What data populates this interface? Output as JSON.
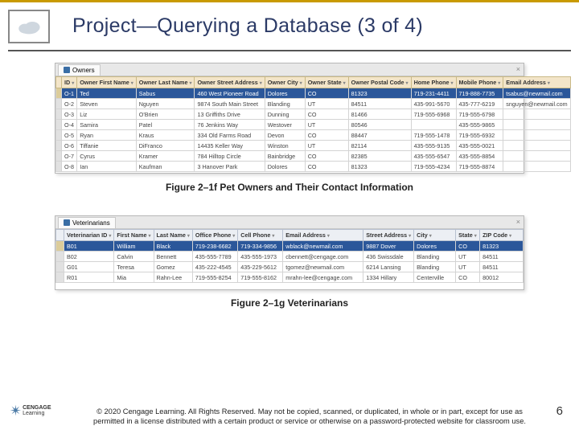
{
  "title": "Project—Querying a Database (3 of 4)",
  "pageNum": "6",
  "caption1": "Figure 2–1f Pet Owners and Their Contact Information",
  "caption2": "Figure 2–1g Veterinarians",
  "copyright": "© 2020 Cengage Learning. All Rights Reserved. May not be copied, scanned, or duplicated, in whole or in part, except for use as permitted in a license distributed with a certain product or service or otherwise on a password-protected website for classroom use.",
  "footerBrand": "CENGAGE",
  "footerSub": "Learning",
  "tab1": "Owners",
  "tab2": "Veterinarians",
  "owners": {
    "headers": [
      "",
      "ID",
      "Owner First Name",
      "Owner Last Name",
      "Owner Street Address",
      "Owner City",
      "Owner State",
      "Owner Postal Code",
      "Home Phone",
      "Mobile Phone",
      "Email Address"
    ],
    "rows": [
      [
        "",
        "O-1",
        "Ted",
        "Sabus",
        "460 West Pioneer Road",
        "Dolores",
        "CO",
        "81323",
        "719-231-4411",
        "719-888-7735",
        "tsabus@newmail.com"
      ],
      [
        "",
        "O-2",
        "Steven",
        "Nguyen",
        "9874 South Main Street",
        "Blanding",
        "UT",
        "84511",
        "435-991-5670",
        "435-777-6219",
        "snguyen@newmail.com"
      ],
      [
        "",
        "O-3",
        "Liz",
        "O'Brien",
        "13 Griffiths Drive",
        "Dunning",
        "CO",
        "81466",
        "719-555-6968",
        "719-555-6798",
        ""
      ],
      [
        "",
        "O-4",
        "Samira",
        "Patel",
        "76 Jenkins Way",
        "Westover",
        "UT",
        "80546",
        "",
        "435-555-9865",
        ""
      ],
      [
        "",
        "O-5",
        "Ryan",
        "Kraus",
        "334 Old Farms Road",
        "Devon",
        "CO",
        "88447",
        "719-555-1478",
        "719-555-6932",
        ""
      ],
      [
        "",
        "O-6",
        "Tiffanie",
        "DiFranco",
        "14435 Keller Way",
        "Winston",
        "UT",
        "82114",
        "435-555-9135",
        "435-555-0021",
        ""
      ],
      [
        "",
        "O-7",
        "Cyrus",
        "Kramer",
        "784 Hilltop Circle",
        "Bainbridge",
        "CO",
        "82385",
        "435-555-6547",
        "435-555-8854",
        ""
      ],
      [
        "",
        "O-8",
        "Ian",
        "Kaufman",
        "3 Hanover Park",
        "Dolores",
        "CO",
        "81323",
        "719-555-4234",
        "719-555-8874",
        ""
      ]
    ],
    "hlRow": 0,
    "colWidths": [
      "10px",
      "22px",
      "60px",
      "60px",
      "94px",
      "46px",
      "48px",
      "60px",
      "50px",
      "50px",
      "auto"
    ],
    "headerBg": "#f3e5c9",
    "hlBg": "#2b579a"
  },
  "vets": {
    "headers": [
      "",
      "Veterinarian ID",
      "First Name",
      "Last Name",
      "Office Phone",
      "Cell Phone",
      "Email Address",
      "Street Address",
      "City",
      "State",
      "ZIP Code"
    ],
    "rows": [
      [
        "",
        "B01",
        "William",
        "Black",
        "719-238-6682",
        "719-334-9856",
        "wblack@newmail.com",
        "9887 Dover",
        "Dolores",
        "CO",
        "81323"
      ],
      [
        "",
        "B02",
        "Calvin",
        "Bennett",
        "435-555-7789",
        "435-555-1973",
        "cbennett@cengage.com",
        "436 Swissdale",
        "Blanding",
        "UT",
        "84511"
      ],
      [
        "",
        "G01",
        "Teresa",
        "Gomez",
        "435-222-4545",
        "435-229-5612",
        "tgomez@newmail.com",
        "6214 Lansing",
        "Blanding",
        "UT",
        "84511"
      ],
      [
        "",
        "R01",
        "Mia",
        "Rahn-Lee",
        "719-555-8254",
        "719-555-8162",
        "mrahn-lee@cengage.com",
        "1334 Hillary",
        "Centerville",
        "CO",
        "80012"
      ]
    ],
    "hlRow": 0,
    "colWidths": [
      "10px",
      "62px",
      "46px",
      "46px",
      "56px",
      "56px",
      "100px",
      "58px",
      "52px",
      "30px",
      "auto"
    ]
  }
}
